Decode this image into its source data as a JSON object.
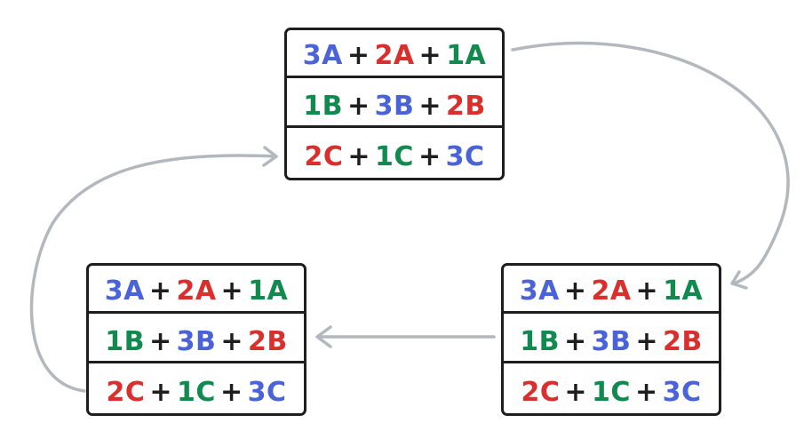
{
  "colors": {
    "blue": "#4a63d9",
    "red": "#d9302e",
    "green": "#108a4f",
    "black": "#1e1e1e",
    "arrow": "#b3b8be"
  },
  "boxes": [
    {
      "name": "top",
      "rows": [
        {
          "terms": [
            {
              "text": "3A",
              "color": "blue"
            },
            {
              "text": "2A",
              "color": "red"
            },
            {
              "text": "1A",
              "color": "green"
            }
          ]
        },
        {
          "terms": [
            {
              "text": "1B",
              "color": "green"
            },
            {
              "text": "3B",
              "color": "blue"
            },
            {
              "text": "2B",
              "color": "red"
            }
          ]
        },
        {
          "terms": [
            {
              "text": "2C",
              "color": "red"
            },
            {
              "text": "1C",
              "color": "green"
            },
            {
              "text": "3C",
              "color": "blue"
            }
          ]
        }
      ]
    },
    {
      "name": "bottom-right",
      "rows": [
        {
          "terms": [
            {
              "text": "3A",
              "color": "blue"
            },
            {
              "text": "2A",
              "color": "red"
            },
            {
              "text": "1A",
              "color": "green"
            }
          ]
        },
        {
          "terms": [
            {
              "text": "1B",
              "color": "green"
            },
            {
              "text": "3B",
              "color": "blue"
            },
            {
              "text": "2B",
              "color": "red"
            }
          ]
        },
        {
          "terms": [
            {
              "text": "2C",
              "color": "red"
            },
            {
              "text": "1C",
              "color": "green"
            },
            {
              "text": "3C",
              "color": "blue"
            }
          ]
        }
      ]
    },
    {
      "name": "bottom-left",
      "rows": [
        {
          "terms": [
            {
              "text": "3A",
              "color": "blue"
            },
            {
              "text": "2A",
              "color": "red"
            },
            {
              "text": "1A",
              "color": "green"
            }
          ]
        },
        {
          "terms": [
            {
              "text": "1B",
              "color": "green"
            },
            {
              "text": "3B",
              "color": "blue"
            },
            {
              "text": "2B",
              "color": "red"
            }
          ]
        },
        {
          "terms": [
            {
              "text": "2C",
              "color": "red"
            },
            {
              "text": "1C",
              "color": "green"
            },
            {
              "text": "3C",
              "color": "blue"
            }
          ]
        }
      ]
    }
  ],
  "operator": "+",
  "arrows": [
    {
      "from": "top",
      "to": "bottom-right"
    },
    {
      "from": "bottom-right",
      "to": "bottom-left"
    },
    {
      "from": "bottom-left",
      "to": "top"
    }
  ]
}
